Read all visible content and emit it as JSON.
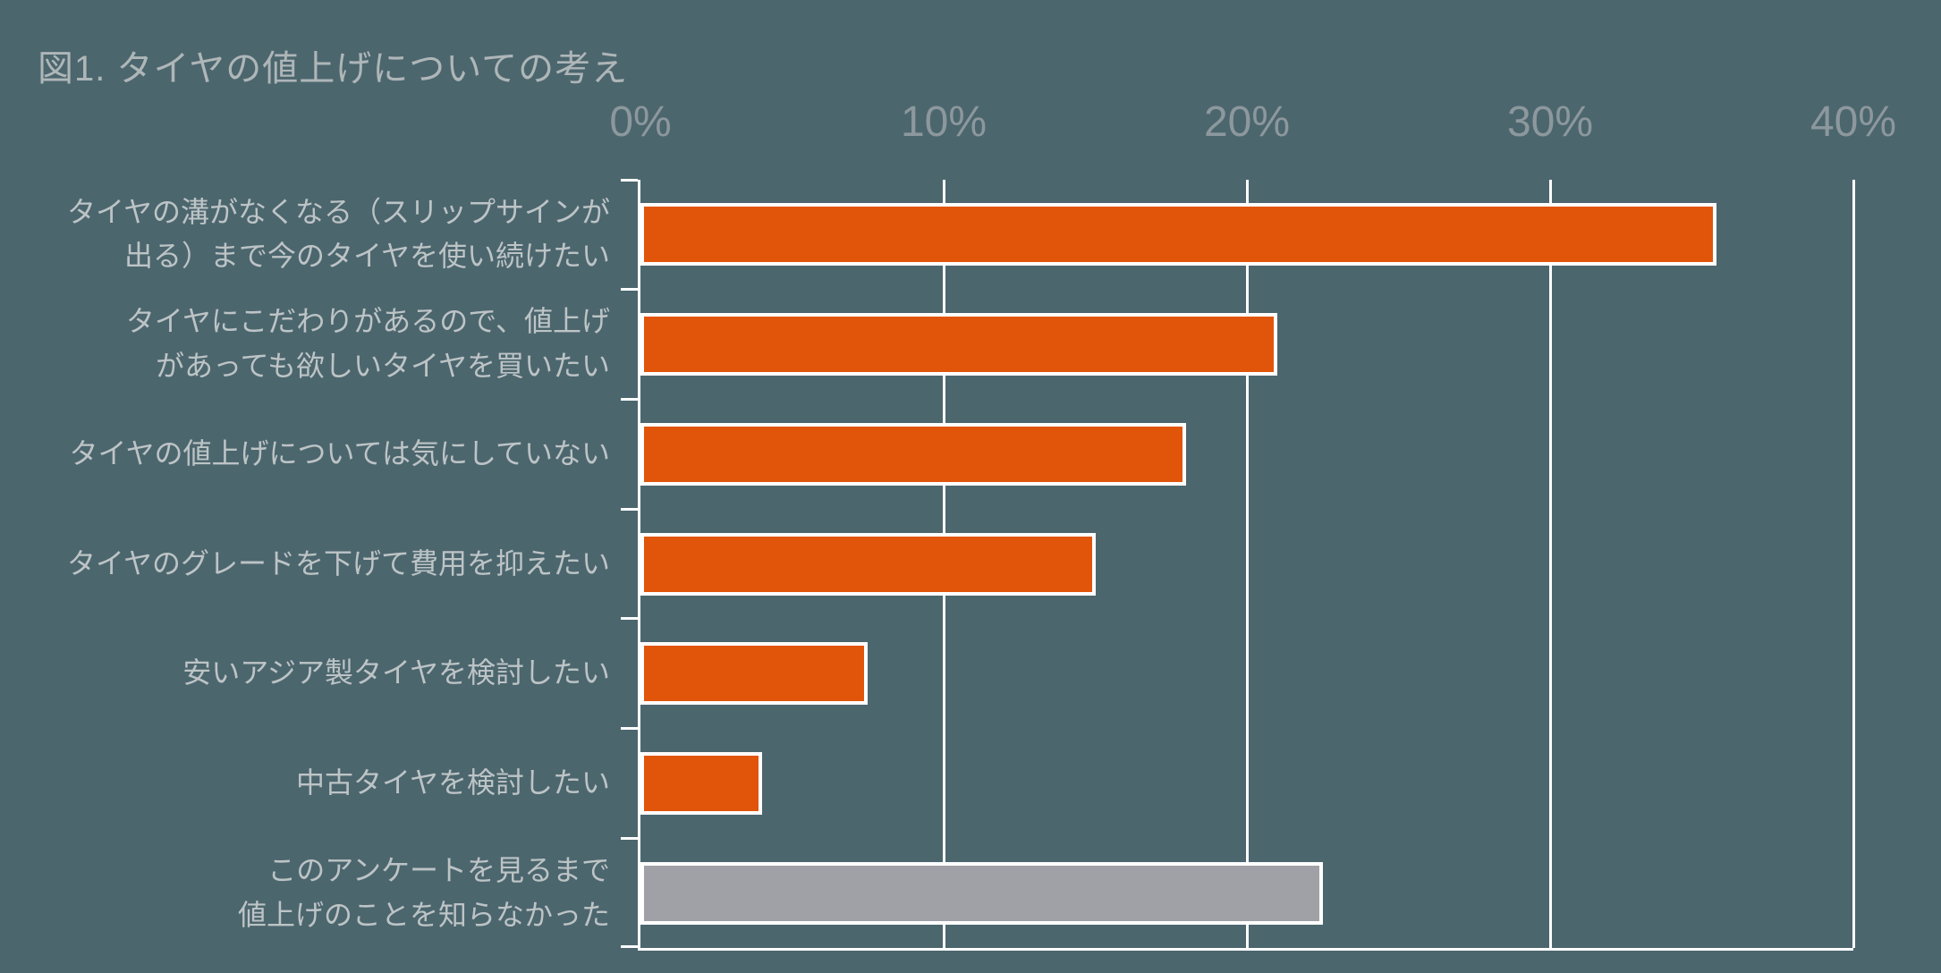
{
  "title": "図1. タイヤの値上げについての考え",
  "chart_data": {
    "type": "bar",
    "orientation": "horizontal",
    "title": "図1. タイヤの値上げについての考え",
    "categories": [
      "タイヤの溝がなくなる（スリップサインが\n出る）まで今のタイヤを使い続けたい",
      "タイヤにこだわりがあるので、値上げ\nがあっても欲しいタイヤを買いたい",
      "タイヤの値上げについては気にしていない",
      "タイヤのグレードを下げて費用を抑えたい",
      "安いアジア製タイヤを検討したい",
      "中古タイヤを検討したい",
      "このアンケートを見るまで\n値上げのことを知らなかった"
    ],
    "values": [
      35.5,
      21,
      18,
      15,
      7.5,
      4,
      22.5
    ],
    "bar_colors": [
      "#e0550a",
      "#e0550a",
      "#e0550a",
      "#e0550a",
      "#e0550a",
      "#e0550a",
      "#a0a1a6"
    ],
    "xlabel": "",
    "ylabel": "",
    "xlim": [
      0,
      40
    ],
    "x_ticks": [
      "0%",
      "10%",
      "20%",
      "30%",
      "40%"
    ],
    "x_tick_values": [
      0,
      10,
      20,
      30,
      40
    ],
    "grid": true,
    "legend": "none"
  },
  "colors": {
    "background": "#4c666e",
    "bar_orange": "#e0550a",
    "bar_gray": "#a0a1a6",
    "axis": "#ffffff",
    "x_tick_label": "#8c989d",
    "category_label": "#bdc4c6",
    "title": "#aeb6b8"
  }
}
